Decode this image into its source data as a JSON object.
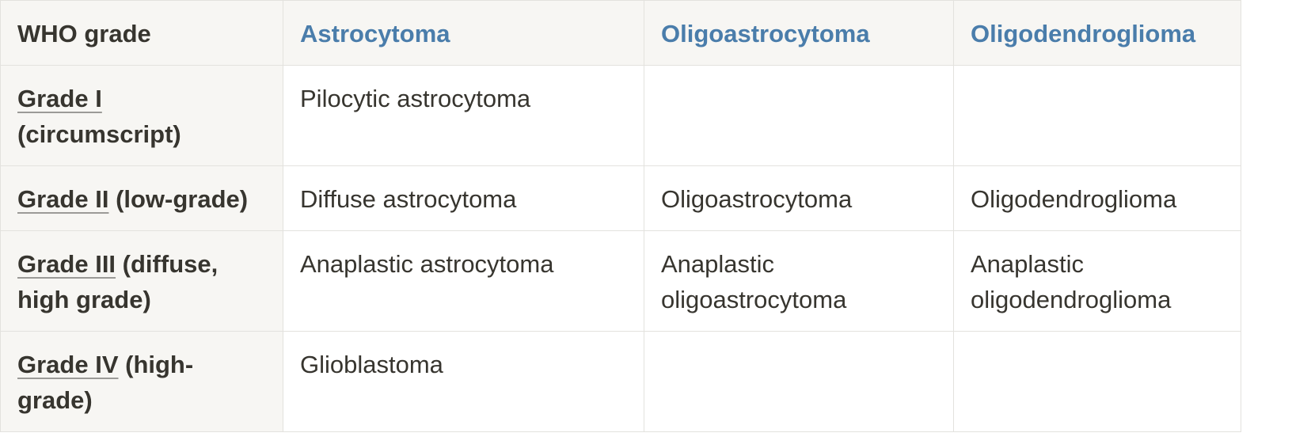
{
  "table": {
    "headers": {
      "grade": "WHO grade",
      "astrocytoma": "Astrocytoma",
      "oligoastrocytoma": "Oligoastrocytoma",
      "oligodendroglioma": "Oligodendroglioma"
    },
    "header_color": "#4a7dab",
    "rows": [
      {
        "grade_link": "Grade I",
        "grade_desc": "(circumscript)",
        "astrocytoma": "Pilocytic astrocytoma",
        "oligoastrocytoma": "",
        "oligodendroglioma": ""
      },
      {
        "grade_link": "Grade II",
        "grade_desc": "(low-grade)",
        "astrocytoma": "Diffuse astrocytoma",
        "oligoastrocytoma": "Oligoastrocytoma",
        "oligodendroglioma": "Oligodendroglioma"
      },
      {
        "grade_link": "Grade III",
        "grade_desc": "(diffuse, high grade)",
        "astrocytoma": "Anaplastic astrocytoma",
        "oligoastrocytoma": "Anaplastic oligoastrocytoma",
        "oligodendroglioma": "Anaplastic oligodendroglioma"
      },
      {
        "grade_link": "Grade IV",
        "grade_desc": "(high-grade)",
        "astrocytoma": "Glioblastoma",
        "oligoastrocytoma": "",
        "oligodendroglioma": ""
      }
    ]
  }
}
